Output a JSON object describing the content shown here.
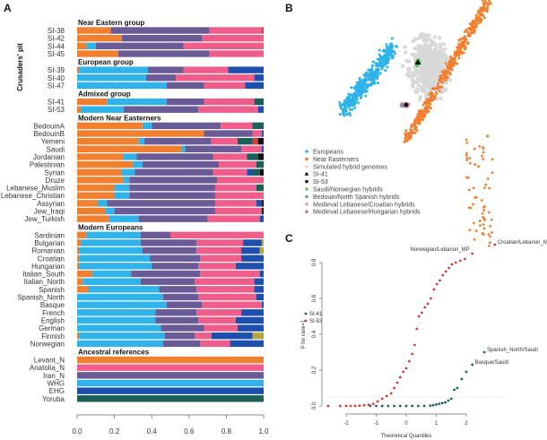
{
  "panels": {
    "a": "A",
    "b": "B",
    "c": "C"
  },
  "colors": {
    "orange": "#f08030",
    "cyan": "#2fb3e8",
    "purple": "#6a5a96",
    "pink": "#ef5e8a",
    "blue": "#1f4fae",
    "teal": "#1a5f58",
    "black": "#111111",
    "olive": "#b3a843",
    "red": "#d33c3c"
  },
  "chart_data": [
    {
      "type": "bar",
      "orientation": "horizontal-stacked",
      "side_label": "Crusaders' pit",
      "xlim": [
        0,
        1
      ],
      "xticks": [
        "0.0",
        "0.2",
        "0.4",
        "0.6",
        "0.8",
        "1.0"
      ],
      "component_order": [
        "orange",
        "cyan",
        "purple",
        "pink",
        "blue",
        "teal",
        "red",
        "black",
        "olive"
      ],
      "groups": [
        {
          "title": "Near Eastern group",
          "rows": [
            {
              "label": "SI-38",
              "values": {
                "orange": 0.18,
                "purple": 0.53,
                "pink": 0.28,
                "red": 0.01
              }
            },
            {
              "label": "SI-42",
              "values": {
                "orange": 0.24,
                "purple": 0.43,
                "pink": 0.33
              }
            },
            {
              "label": "SI-44",
              "values": {
                "orange": 0.05,
                "cyan": 0.05,
                "purple": 0.47,
                "pink": 0.43
              }
            },
            {
              "label": "SI-45",
              "values": {
                "orange": 0.22,
                "purple": 0.49,
                "pink": 0.29
              }
            }
          ]
        },
        {
          "title": "European group",
          "rows": [
            {
              "label": "SI-39",
              "values": {
                "orange": 0.01,
                "cyan": 0.37,
                "purple": 0.19,
                "pink": 0.24,
                "blue": 0.19
              }
            },
            {
              "label": "SI-40",
              "values": {
                "cyan": 0.37,
                "purple": 0.16,
                "pink": 0.42,
                "blue": 0.05
              }
            },
            {
              "label": "SI-47",
              "values": {
                "cyan": 0.48,
                "purple": 0.2,
                "pink": 0.22,
                "blue": 0.1
              }
            }
          ]
        },
        {
          "title": "Admixed group",
          "rows": [
            {
              "label": "SI-41",
              "values": {
                "orange": 0.16,
                "cyan": 0.32,
                "purple": 0.2,
                "pink": 0.27,
                "teal": 0.05
              }
            },
            {
              "label": "SI-53",
              "values": {
                "orange": 0.02,
                "cyan": 0.23,
                "purple": 0.4,
                "pink": 0.32,
                "blue": 0.03
              }
            }
          ]
        },
        {
          "title": "Modern Near Easterners",
          "rows": [
            {
              "label": "BedouinA",
              "values": {
                "orange": 0.35,
                "cyan": 0.05,
                "purple": 0.37,
                "pink": 0.17,
                "teal": 0.06
              }
            },
            {
              "label": "BedouinB",
              "values": {
                "orange": 0.68,
                "purple": 0.26,
                "pink": 0.05,
                "blue": 0.01
              }
            },
            {
              "label": "Yemeni",
              "values": {
                "orange": 0.33,
                "cyan": 0.03,
                "purple": 0.36,
                "pink": 0.14,
                "teal": 0.08,
                "red": 0.03,
                "black": 0.03
              }
            },
            {
              "label": "Saudi",
              "values": {
                "orange": 0.56,
                "cyan": 0.02,
                "purple": 0.3,
                "pink": 0.11,
                "blue": 0.01
              }
            },
            {
              "label": "Jordanian",
              "values": {
                "orange": 0.25,
                "cyan": 0.07,
                "purple": 0.41,
                "pink": 0.18,
                "teal": 0.06,
                "black": 0.03
              }
            },
            {
              "label": "Palestinian",
              "values": {
                "orange": 0.3,
                "cyan": 0.05,
                "purple": 0.41,
                "pink": 0.2,
                "teal": 0.04
              }
            },
            {
              "label": "Syrian",
              "values": {
                "orange": 0.24,
                "cyan": 0.07,
                "purple": 0.42,
                "pink": 0.18,
                "blue": 0.03,
                "teal": 0.04,
                "black": 0.02
              }
            },
            {
              "label": "Druze",
              "values": {
                "orange": 0.25,
                "cyan": 0.03,
                "purple": 0.47,
                "pink": 0.25
              }
            },
            {
              "label": "Lebanese_Muslim",
              "values": {
                "orange": 0.2,
                "cyan": 0.08,
                "purple": 0.46,
                "pink": 0.22,
                "teal": 0.04
              }
            },
            {
              "label": "Lebanese_Christian",
              "values": {
                "orange": 0.2,
                "cyan": 0.08,
                "purple": 0.46,
                "pink": 0.26
              }
            },
            {
              "label": "Assyrian",
              "values": {
                "orange": 0.11,
                "cyan": 0.05,
                "purple": 0.58,
                "pink": 0.22,
                "blue": 0.03,
                "black": 0.01
              }
            },
            {
              "label": "Jew_Iraqi",
              "values": {
                "orange": 0.15,
                "cyan": 0.05,
                "purple": 0.54,
                "pink": 0.25,
                "black": 0.01
              }
            },
            {
              "label": "Jew_Turkish",
              "values": {
                "orange": 0.17,
                "cyan": 0.16,
                "purple": 0.37,
                "pink": 0.28,
                "blue": 0.02
              }
            }
          ]
        },
        {
          "title": "Modern Europeans",
          "rows": [
            {
              "label": "Sardinian",
              "values": {
                "orange": 0.05,
                "cyan": 0.29,
                "purple": 0.16,
                "pink": 0.5
              }
            },
            {
              "label": "Bulgarian",
              "values": {
                "orange": 0.02,
                "cyan": 0.32,
                "purple": 0.3,
                "pink": 0.25,
                "blue": 0.1,
                "olive": 0.01
              }
            },
            {
              "label": "Romanian",
              "values": {
                "orange": 0.01,
                "cyan": 0.34,
                "purple": 0.29,
                "pink": 0.24,
                "blue": 0.1,
                "olive": 0.02
              }
            },
            {
              "label": "Croatian",
              "values": {
                "orange": 0.01,
                "cyan": 0.38,
                "purple": 0.27,
                "pink": 0.22,
                "blue": 0.12
              }
            },
            {
              "label": "Hungarian",
              "values": {
                "orange": 0.01,
                "cyan": 0.39,
                "purple": 0.25,
                "pink": 0.2,
                "blue": 0.15
              }
            },
            {
              "label": "Italian_South",
              "values": {
                "orange": 0.08,
                "cyan": 0.21,
                "purple": 0.37,
                "pink": 0.32,
                "blue": 0.02
              }
            },
            {
              "label": "Italian_North",
              "values": {
                "orange": 0.03,
                "cyan": 0.31,
                "purple": 0.29,
                "pink": 0.32,
                "blue": 0.05
              }
            },
            {
              "label": "Spanish",
              "values": {
                "orange": 0.06,
                "cyan": 0.38,
                "purple": 0.2,
                "pink": 0.31,
                "blue": 0.05
              }
            },
            {
              "label": "Spanish_North",
              "values": {
                "cyan": 0.46,
                "purple": 0.19,
                "pink": 0.31,
                "blue": 0.04
              }
            },
            {
              "label": "Basque",
              "values": {
                "cyan": 0.48,
                "purple": 0.19,
                "pink": 0.32,
                "blue": 0.01
              }
            },
            {
              "label": "French",
              "values": {
                "cyan": 0.42,
                "purple": 0.22,
                "pink": 0.24,
                "blue": 0.12
              }
            },
            {
              "label": "English",
              "values": {
                "cyan": 0.42,
                "purple": 0.23,
                "pink": 0.2,
                "blue": 0.15
              }
            },
            {
              "label": "German",
              "values": {
                "cyan": 0.45,
                "purple": 0.23,
                "pink": 0.18,
                "blue": 0.14
              }
            },
            {
              "label": "Finnish",
              "values": {
                "cyan": 0.46,
                "purple": 0.16,
                "pink": 0.09,
                "blue": 0.22,
                "orange": 0.01,
                "olive": 0.06
              }
            },
            {
              "label": "Norwegian",
              "values": {
                "cyan": 0.46,
                "purple": 0.2,
                "pink": 0.16,
                "blue": 0.18
              }
            }
          ]
        },
        {
          "title": "Ancestral references",
          "rows": [
            {
              "label": "Levant_N",
              "values": {
                "orange": 1.0
              }
            },
            {
              "label": "Anatolia_N",
              "values": {
                "pink": 1.0
              }
            },
            {
              "label": "Iran_N",
              "values": {
                "purple": 1.0
              }
            },
            {
              "label": "WHG",
              "values": {
                "cyan": 1.0
              }
            },
            {
              "label": "EHG",
              "values": {
                "blue": 1.0
              }
            },
            {
              "label": "Yoruba",
              "values": {
                "teal": 1.0
              }
            }
          ]
        }
      ]
    },
    {
      "type": "scatter",
      "axes_shown": false,
      "legend_placement": "bottom-left",
      "legend": [
        {
          "label": "Europeans",
          "color": "#2fb3e8",
          "marker": "circle"
        },
        {
          "label": "Near Easterners",
          "color": "#f08030",
          "marker": "circle"
        },
        {
          "label": "Simulated hybrid genomes",
          "color": "#d6d6d6",
          "marker": "circle"
        },
        {
          "label": "SI-41",
          "color": "#111111",
          "marker": "triangle"
        },
        {
          "label": "SI-53",
          "color": "#111111",
          "marker": "circle"
        },
        {
          "label": "Saudi/Norwegian hybrids",
          "color": "#5cc95c",
          "marker": "circle"
        },
        {
          "label": "Bedouin/North Spanish hybrids",
          "color": "#6fa3a3",
          "marker": "circle"
        },
        {
          "label": "Medieval Lebanese/Croatian hybrids",
          "color": "#ec9ab0",
          "marker": "circle"
        },
        {
          "label": "Medieval Lebanese/Hungarian hybrids",
          "color": "#a38aa8",
          "marker": "circle"
        }
      ]
    },
    {
      "type": "scatter",
      "xlabel": "Theoretical Quantiles",
      "ylabel": "P for rank=1",
      "xlim": [
        -2.7,
        3.0
      ],
      "ylim": [
        0,
        0.9
      ],
      "xticks": [
        "-2",
        "-1",
        "0",
        "1",
        "2"
      ],
      "yticks": [
        "0.0",
        "0.2",
        "0.4",
        "0.6",
        "0.8"
      ],
      "threshold_line": 0.05,
      "legend_placement": "left",
      "series": [
        {
          "name": "SI-41",
          "color": "#1a5f58",
          "points": [
            [
              -1.2,
              0
            ],
            [
              -1.0,
              0
            ],
            [
              -0.8,
              0
            ],
            [
              -0.6,
              0
            ],
            [
              -0.4,
              0
            ],
            [
              -0.2,
              0
            ],
            [
              0,
              0
            ],
            [
              0.2,
              0
            ],
            [
              0.4,
              0
            ],
            [
              0.6,
              0
            ],
            [
              0.8,
              0.002
            ],
            [
              0.9,
              0.004
            ],
            [
              1.0,
              0.008
            ],
            [
              1.1,
              0.012
            ],
            [
              1.2,
              0.016
            ],
            [
              1.3,
              0.02
            ],
            [
              1.4,
              0.03
            ],
            [
              1.5,
              0.04
            ],
            [
              1.6,
              0.09
            ],
            [
              1.7,
              0.1
            ],
            [
              1.85,
              0.15
            ],
            [
              2.0,
              0.19
            ],
            [
              2.2,
              0.23
            ],
            [
              2.6,
              0.3
            ]
          ]
        },
        {
          "name": "SI-53",
          "color": "#d33c3c",
          "points": [
            [
              -2.6,
              0
            ],
            [
              -2.2,
              0
            ],
            [
              -2.0,
              0
            ],
            [
              -1.85,
              0
            ],
            [
              -1.7,
              0
            ],
            [
              -1.55,
              0.002
            ],
            [
              -1.4,
              0.004
            ],
            [
              -1.25,
              0.007
            ],
            [
              -1.1,
              0.012
            ],
            [
              -0.95,
              0.025
            ],
            [
              -0.8,
              0.04
            ],
            [
              -0.65,
              0.055
            ],
            [
              -0.5,
              0.07
            ],
            [
              -0.4,
              0.1
            ],
            [
              -0.3,
              0.13
            ],
            [
              -0.2,
              0.16
            ],
            [
              -0.1,
              0.19
            ],
            [
              0,
              0.21
            ],
            [
              0.1,
              0.25
            ],
            [
              0.2,
              0.29
            ],
            [
              0.28,
              0.34
            ],
            [
              0.35,
              0.43
            ],
            [
              0.42,
              0.5
            ],
            [
              0.52,
              0.52
            ],
            [
              0.62,
              0.55
            ],
            [
              0.72,
              0.57
            ],
            [
              0.82,
              0.6
            ],
            [
              0.92,
              0.65
            ],
            [
              1.02,
              0.68
            ],
            [
              1.12,
              0.7
            ],
            [
              1.22,
              0.73
            ],
            [
              1.32,
              0.75
            ],
            [
              1.42,
              0.77
            ],
            [
              1.52,
              0.79
            ],
            [
              1.65,
              0.8
            ],
            [
              1.8,
              0.81
            ],
            [
              1.95,
              0.82
            ],
            [
              2.2,
              0.85
            ],
            [
              2.95,
              0.9
            ]
          ]
        }
      ],
      "annotations": [
        {
          "text": "Croatian/Lebanon_MP",
          "x": 2.95,
          "y": 0.9
        },
        {
          "text": "Norwegian/Lebanon_MP",
          "x": 2.2,
          "y": 0.85
        },
        {
          "text": "Spanish_North/Saudi",
          "x": 2.6,
          "y": 0.3
        },
        {
          "text": "Basque/Saudi",
          "x": 2.2,
          "y": 0.23
        }
      ]
    }
  ]
}
